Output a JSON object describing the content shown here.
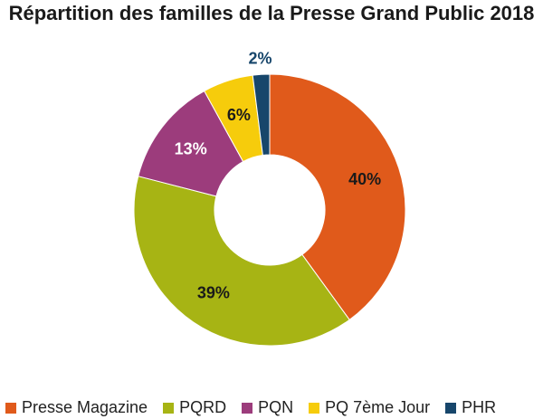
{
  "chart_data": {
    "type": "pie",
    "title": "Répartition des familles de la Presse Grand Public 2018",
    "donut": true,
    "legend_position": "bottom",
    "categories": [
      "Presse Magazine",
      "PQRD",
      "PQN",
      "PQ 7ème Jour",
      "PHR"
    ],
    "values": [
      40,
      39,
      13,
      6,
      2
    ],
    "labels": [
      "40%",
      "39%",
      "13%",
      "6%",
      "2%"
    ],
    "colors": [
      "#e05a1b",
      "#a7b414",
      "#9c3c7c",
      "#f6cc0c",
      "#17466b"
    ],
    "label_colors": [
      "#1a1a1a",
      "#1a1a1a",
      "#ffffff",
      "#1a1a1a",
      "#17466b"
    ]
  }
}
